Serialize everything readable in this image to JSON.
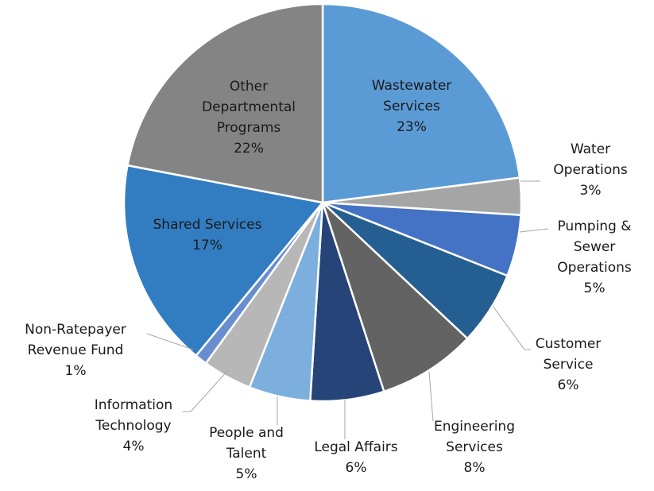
{
  "chart_data": {
    "type": "pie",
    "categories": [
      "Wastewater Services",
      "Water Operations",
      "Pumping & Sewer Operations",
      "Customer Service",
      "Engineering Services",
      "Legal Affairs",
      "People and Talent",
      "Information Technology",
      "Non-Ratepayer Revenue Fund",
      "Shared Services",
      "Other Departmental Programs"
    ],
    "values": [
      23,
      3,
      5,
      6,
      8,
      6,
      5,
      4,
      1,
      17,
      22
    ],
    "value_labels": [
      "23%",
      "3%",
      "5%",
      "6%",
      "8%",
      "6%",
      "5%",
      "4%",
      "1%",
      "17%",
      "22%"
    ],
    "colors": [
      "#5b9bd5",
      "#a5a5a5",
      "#4472c4",
      "#255e91",
      "#636363",
      "#264478",
      "#7cafdd",
      "#b7b7b7",
      "#698ed0",
      "#327dc2",
      "#848484"
    ]
  }
}
